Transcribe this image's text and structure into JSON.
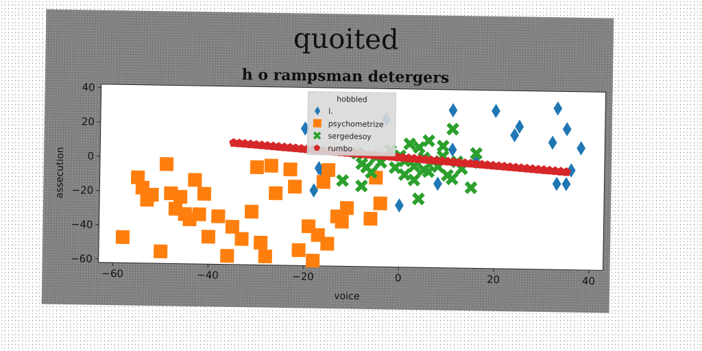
{
  "chart_data": {
    "type": "scatter",
    "title": "quoited",
    "subtitle": "h o rampsman detergers",
    "xlabel": "voice",
    "ylabel": "assecution",
    "xlim": [
      -63,
      43
    ],
    "ylim": [
      -62,
      42
    ],
    "xticks": [
      -60,
      -40,
      -20,
      0,
      20,
      40
    ],
    "yticks": [
      -60,
      -40,
      -20,
      0,
      20,
      40
    ],
    "xtick_labels": [
      "−60",
      "−40",
      "−20",
      "0",
      "20",
      "40"
    ],
    "ytick_labels": [
      "−60",
      "−40",
      "−20",
      "0",
      "20",
      "40"
    ],
    "grid": false,
    "legend": {
      "title": "hobbled",
      "position": "upper-center"
    },
    "series": [
      {
        "name": "l.",
        "marker": "diamond",
        "color": "#1f77b4",
        "points": [
          [
            -20,
            18
          ],
          [
            -18,
            -18
          ],
          [
            -17,
            -5
          ],
          [
            -16,
            -8
          ],
          [
            -3,
            24
          ],
          [
            0,
            -26
          ],
          [
            8,
            -13
          ],
          [
            11,
            7
          ],
          [
            11,
            30
          ],
          [
            16,
            0
          ],
          [
            20,
            30
          ],
          [
            24,
            16
          ],
          [
            25,
            21
          ],
          [
            32,
            12
          ],
          [
            33,
            32
          ],
          [
            33,
            -12
          ],
          [
            35,
            -12
          ],
          [
            35,
            20
          ],
          [
            36,
            -4
          ],
          [
            38,
            9
          ]
        ]
      },
      {
        "name": "psychometrize",
        "color": "#ff7f0e",
        "marker": "square",
        "points": [
          [
            -58,
            -47
          ],
          [
            -55,
            -12
          ],
          [
            -54,
            -18
          ],
          [
            -53,
            -25
          ],
          [
            -52,
            -22
          ],
          [
            -50,
            -55
          ],
          [
            -49,
            -4
          ],
          [
            -48,
            -21
          ],
          [
            -47,
            -30
          ],
          [
            -46,
            -23
          ],
          [
            -45,
            -33
          ],
          [
            -44,
            -36
          ],
          [
            -43,
            -13
          ],
          [
            -42,
            -33
          ],
          [
            -41,
            -21
          ],
          [
            -40,
            -46
          ],
          [
            -38,
            -34
          ],
          [
            -36,
            -57
          ],
          [
            -35,
            -40
          ],
          [
            -33,
            -47
          ],
          [
            -31,
            -31
          ],
          [
            -30,
            -5
          ],
          [
            -29,
            -49
          ],
          [
            -28,
            -57
          ],
          [
            -27,
            -4
          ],
          [
            -26,
            -20
          ],
          [
            -23,
            -6
          ],
          [
            -22,
            -16
          ],
          [
            -21,
            -53
          ],
          [
            -19,
            -39
          ],
          [
            -18,
            -59
          ],
          [
            -17,
            -44
          ],
          [
            -16,
            -13
          ],
          [
            -15,
            -6
          ],
          [
            -15,
            -49
          ],
          [
            -13,
            -33
          ],
          [
            -12,
            -36
          ],
          [
            -11,
            -28
          ],
          [
            -6,
            -34
          ],
          [
            -5,
            -10
          ],
          [
            -4,
            -25
          ]
        ]
      },
      {
        "name": "sergedesoy",
        "color": "#2ca02c",
        "marker": "x",
        "points": [
          [
            -12,
            -12
          ],
          [
            -9,
            4
          ],
          [
            -8,
            -2
          ],
          [
            -8,
            -15
          ],
          [
            -7,
            -4
          ],
          [
            -6,
            -7
          ],
          [
            -5,
            2
          ],
          [
            -4,
            -1
          ],
          [
            -2,
            6
          ],
          [
            -1,
            -4
          ],
          [
            0,
            3
          ],
          [
            1,
            0
          ],
          [
            1,
            -8
          ],
          [
            2,
            10
          ],
          [
            3,
            -3
          ],
          [
            3,
            -11
          ],
          [
            4,
            8
          ],
          [
            5,
            2
          ],
          [
            5,
            -5
          ],
          [
            6,
            12
          ],
          [
            6,
            -6
          ],
          [
            7,
            0
          ],
          [
            8,
            -3
          ],
          [
            9,
            9
          ],
          [
            9,
            3
          ],
          [
            10,
            -8
          ],
          [
            11,
            -10
          ],
          [
            11,
            19
          ],
          [
            12,
            0
          ],
          [
            13,
            -4
          ],
          [
            15,
            -15
          ],
          [
            16,
            5
          ],
          [
            4,
            -22
          ]
        ]
      },
      {
        "name": "rumbo",
        "color": "#d62728",
        "marker": "pentagon",
        "x_range": [
          -35,
          35
        ],
        "line": {
          "start": [
            -35,
            9
          ],
          "end": [
            35,
            -5
          ],
          "count": 60
        }
      }
    ]
  }
}
